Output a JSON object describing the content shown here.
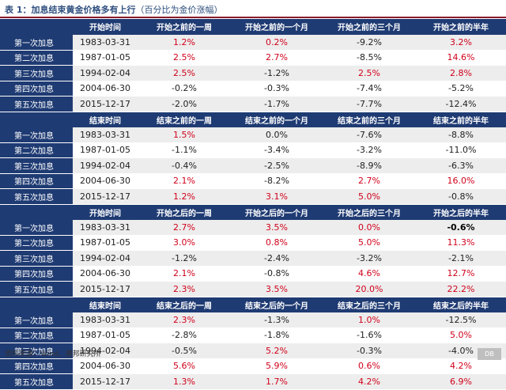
{
  "title": {
    "main": "表 1：加息结束黄金价格多有上行",
    "sub": "（百分比为金价涨幅）"
  },
  "col0_header": "",
  "row_labels": [
    "第一次加息",
    "第二次加息",
    "第三次加息",
    "第四次加息",
    "第五次加息"
  ],
  "dates": [
    "1983-03-31",
    "1987-01-05",
    "1994-02-04",
    "2004-06-30",
    "2015-12-17"
  ],
  "sections": [
    {
      "headers": [
        "开始时间",
        "开始之前的一周",
        "开始之前的一个月",
        "开始之前的三个月",
        "开始之前的半年"
      ],
      "values": [
        [
          "1.2%",
          "0.2%",
          "-9.2%",
          "3.2%"
        ],
        [
          "2.5%",
          "2.7%",
          "-8.5%",
          "14.6%"
        ],
        [
          "2.5%",
          "-1.2%",
          "2.5%",
          "2.8%"
        ],
        [
          "-0.2%",
          "-0.3%",
          "-7.4%",
          "-5.2%"
        ],
        [
          "-2.0%",
          "-1.7%",
          "-7.7%",
          "-12.4%"
        ]
      ]
    },
    {
      "headers": [
        "结束时间",
        "结束之前的一周",
        "结束之前的一个月",
        "结束之前的三个月",
        "结束之前的半年"
      ],
      "values": [
        [
          "1.5%",
          "0.0%",
          "-7.6%",
          "-8.8%"
        ],
        [
          "-1.1%",
          "-3.4%",
          "-3.2%",
          "-11.0%"
        ],
        [
          "-0.4%",
          "-2.5%",
          "-8.9%",
          "-6.3%"
        ],
        [
          "2.1%",
          "-8.2%",
          "2.7%",
          "16.0%"
        ],
        [
          "1.2%",
          "3.1%",
          "5.0%",
          "-0.8%"
        ]
      ]
    },
    {
      "headers": [
        "开始时间",
        "开始之后的一周",
        "开始之后的一个月",
        "开始之后的三个月",
        "开始之后的半年"
      ],
      "values": [
        [
          "2.7%",
          "3.5%",
          "0.0%",
          "-0.6%"
        ],
        [
          "3.0%",
          "0.8%",
          "5.0%",
          "11.3%"
        ],
        [
          "-1.2%",
          "-2.4%",
          "-3.2%",
          "-2.1%"
        ],
        [
          "2.1%",
          "-0.8%",
          "4.6%",
          "12.7%"
        ],
        [
          "2.3%",
          "3.5%",
          "20.0%",
          "22.2%"
        ]
      ]
    },
    {
      "headers": [
        "结束时间",
        "结束之后的一周",
        "结束之后的一个月",
        "结束之后的三个月",
        "结束之后的半年"
      ],
      "values": [
        [
          "2.3%",
          "-1.3%",
          "1.0%",
          "-12.5%"
        ],
        [
          "-2.8%",
          "-1.8%",
          "-1.6%",
          "5.0%"
        ],
        [
          "-0.5%",
          "5.2%",
          "-0.3%",
          "-4.0%"
        ],
        [
          "5.6%",
          "5.9%",
          "0.6%",
          "4.2%"
        ],
        [
          "1.3%",
          "1.7%",
          "4.2%",
          "6.9%"
        ]
      ]
    }
  ],
  "source": "资料来源：Wind，德邦研究所",
  "logo_text": "DB"
}
